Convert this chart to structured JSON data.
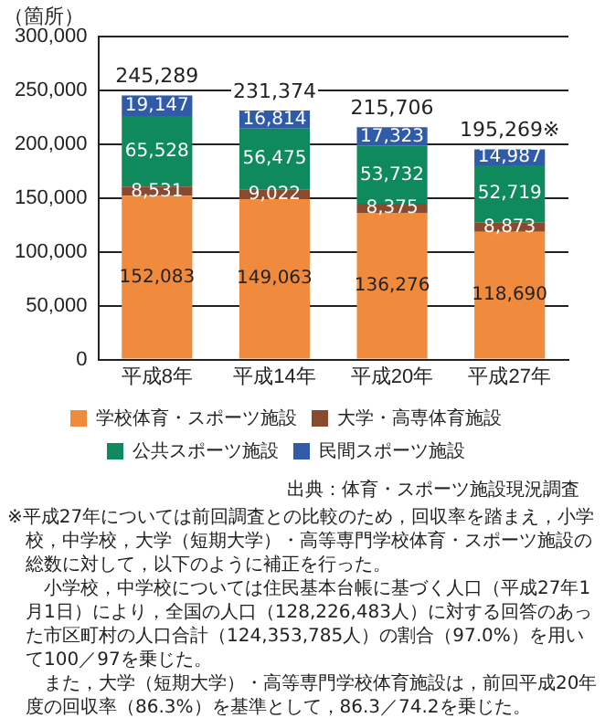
{
  "chart_data": {
    "type": "bar",
    "stacked": true,
    "ylabel": "（箇所）",
    "categories": [
      "平成8年",
      "平成14年",
      "平成20年",
      "平成27年"
    ],
    "series": [
      {
        "name": "学校体育・スポーツ施設",
        "color": "#f08a3c",
        "values": [
          152083,
          149063,
          136276,
          118690
        ],
        "value_labels": [
          "152,083",
          "149,063",
          "136,276",
          "118,690"
        ]
      },
      {
        "name": "大学・高専体育施設",
        "color": "#8a4a30",
        "values": [
          8531,
          9022,
          8375,
          8873
        ],
        "value_labels": [
          "8,531",
          "9,022",
          "8,375",
          "8,873"
        ]
      },
      {
        "name": "公共スポーツ施設",
        "color": "#0e8a5c",
        "values": [
          65528,
          56475,
          53732,
          52719
        ],
        "value_labels": [
          "65,528",
          "56,475",
          "53,732",
          "52,719"
        ]
      },
      {
        "name": "民間スポーツ施設",
        "color": "#2f5ba8",
        "values": [
          19147,
          16814,
          17323,
          14987
        ],
        "value_labels": [
          "19,147",
          "16,814",
          "17,323",
          "14,987"
        ]
      }
    ],
    "totals": [
      "245,289",
      "231,374",
      "215,706",
      "195,269※"
    ],
    "ylim": [
      0,
      300000
    ],
    "yticks": [
      0,
      {
        "value": 50000,
        "label": "50,000"
      },
      {
        "value": 100000,
        "label": "100,000"
      },
      {
        "value": 150000,
        "label": "150,000"
      },
      {
        "value": 200000,
        "label": "200,000"
      },
      {
        "value": 250000,
        "label": "250,000"
      },
      {
        "value": 300000,
        "label": "300,000"
      }
    ],
    "grid": "y",
    "legend": "bottom",
    "annotations": [
      "出典：体育・スポーツ施設現況調査",
      "※平成27年については前回調査との比較のため，回収率を踏まえ，小学校，中学校，大学（短期大学）・高等専門学校体育・スポーツ施設の総数に対して，以下のように補正を行った。",
      "小学校，中学校については住民基本台帳に基づく人口（平成27年1月1日）により，全国の人口（128,226,483人）に対する回答のあった市区町村の人口合計（124,353,785人）の割合（97.0%）を用いて100／97を乗じた。",
      "また，大学（短期大学）・高等専門学校体育施設は，前回平成20年度の回収率（86.3%）を基準として，86.3／74.2を乗じた。"
    ]
  }
}
